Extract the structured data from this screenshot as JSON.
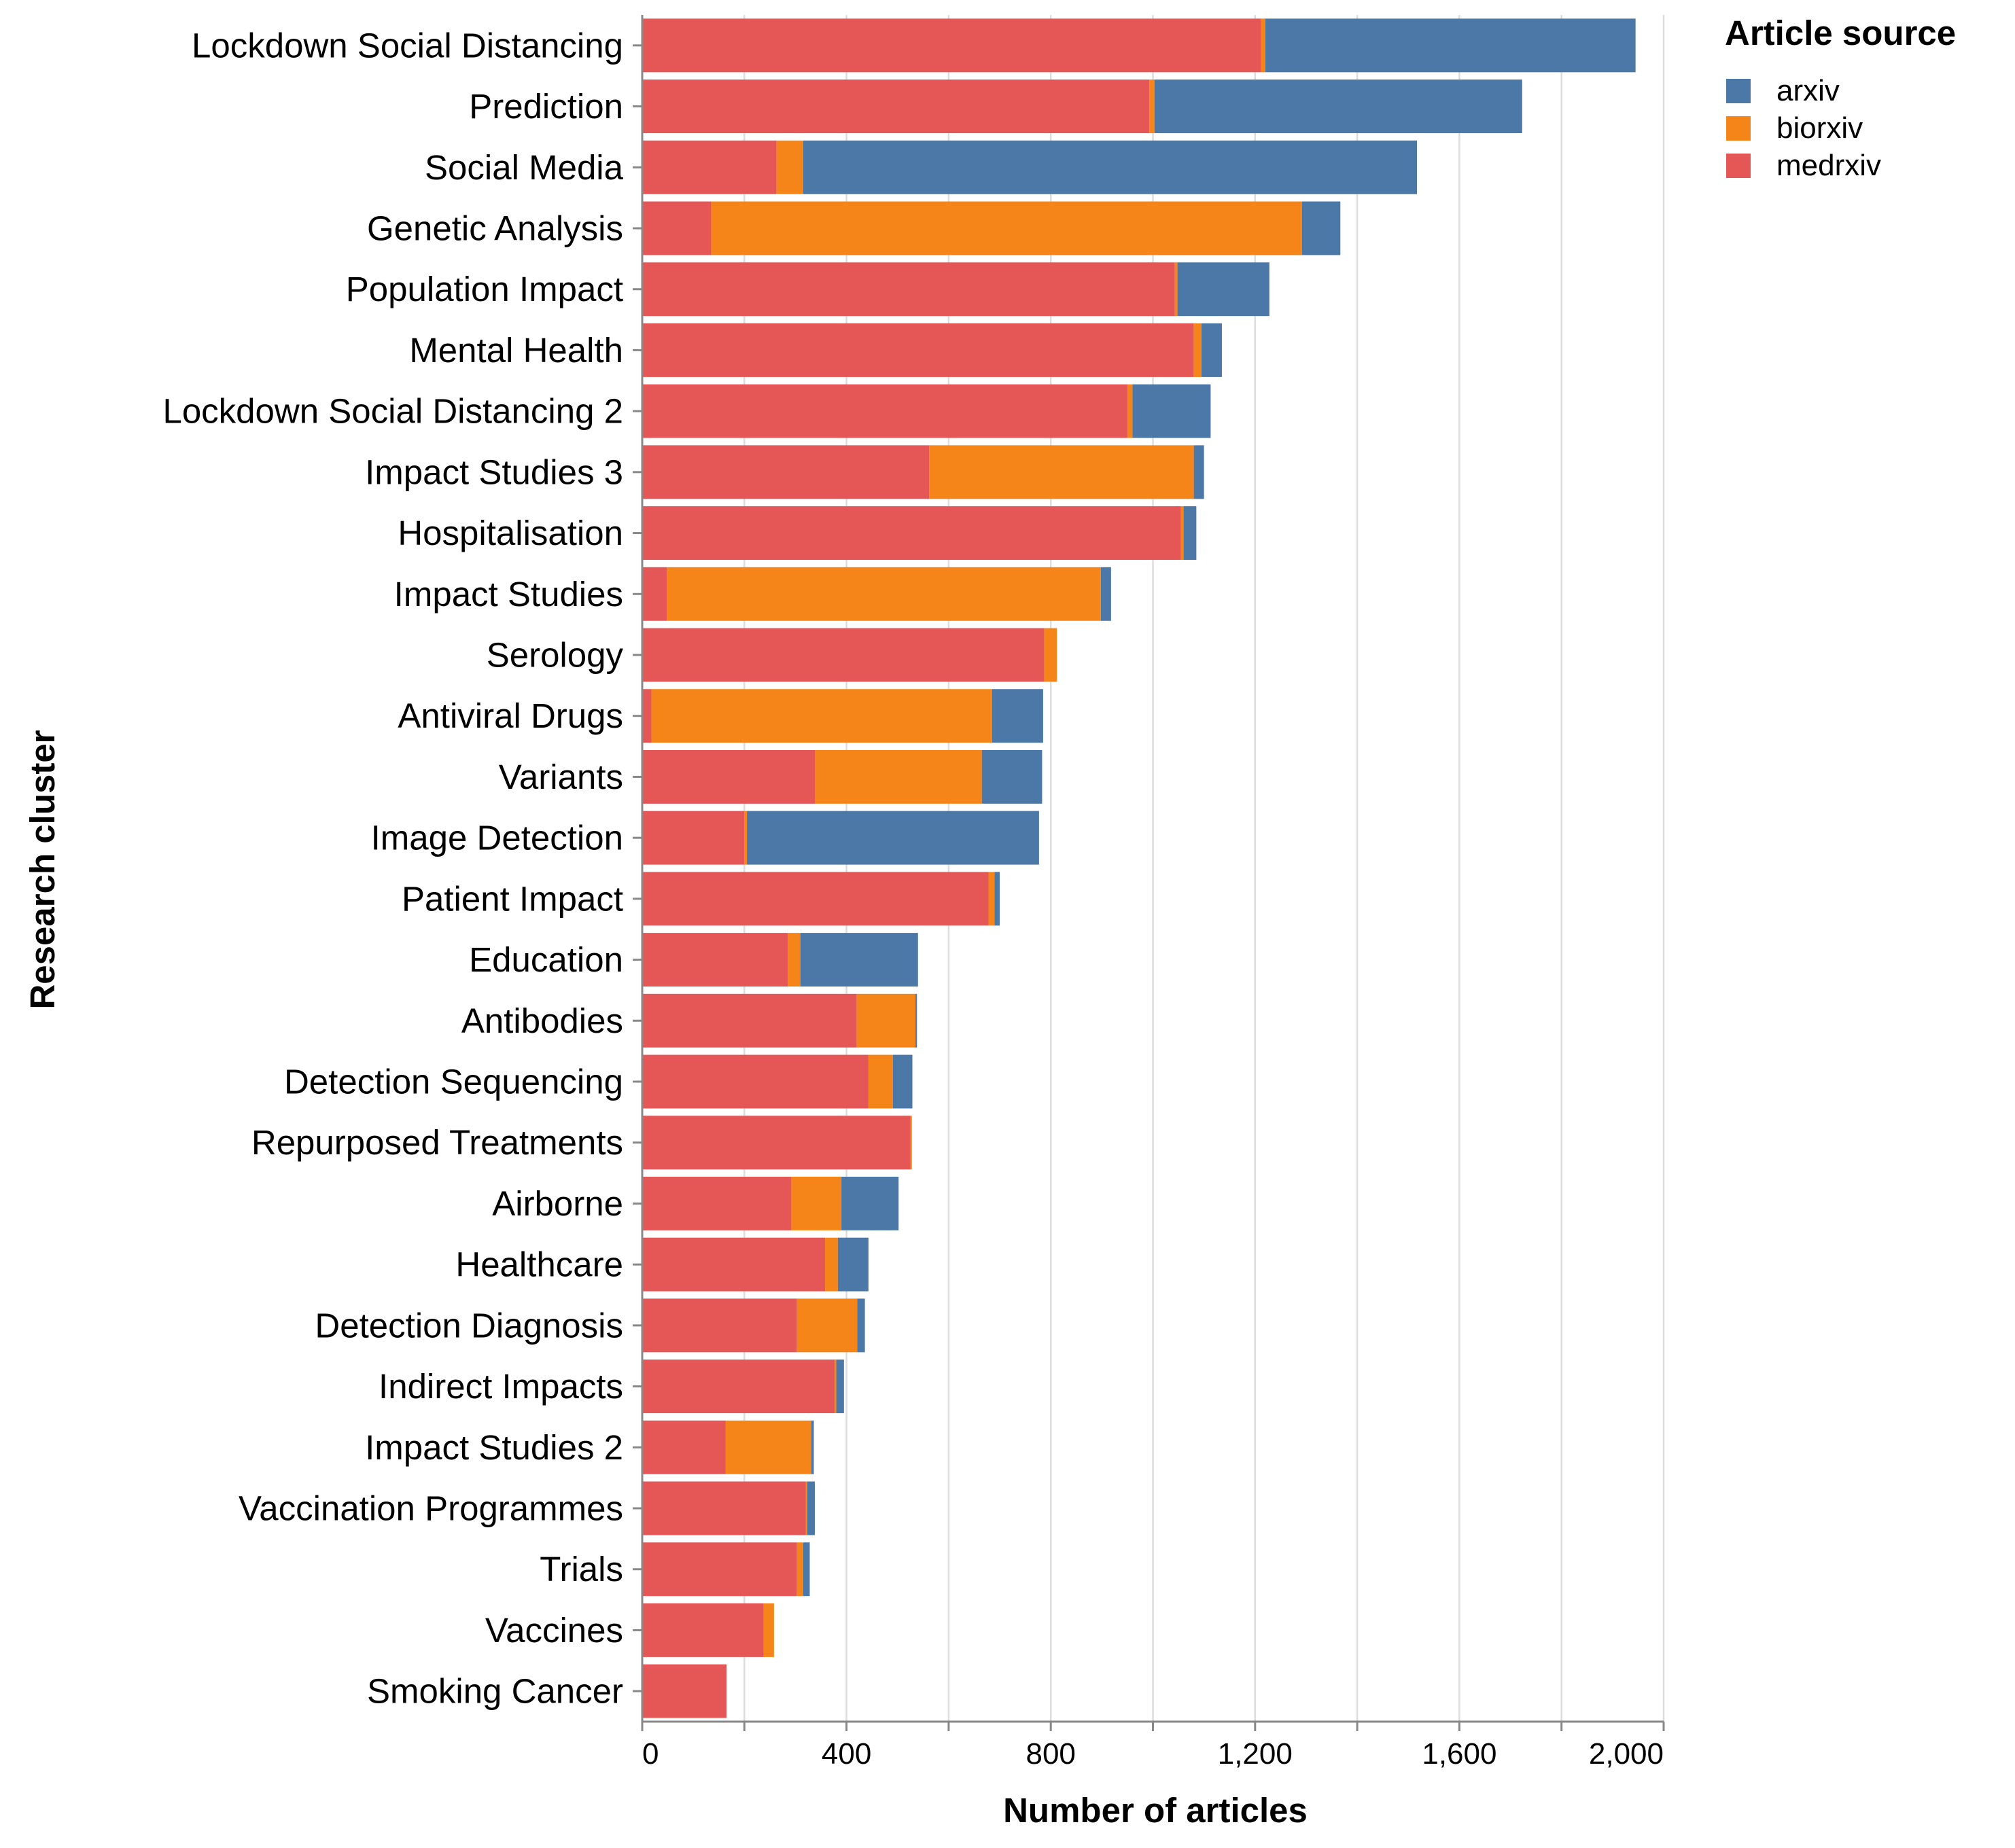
{
  "chart_data": {
    "type": "bar",
    "orientation": "horizontal",
    "stacked": true,
    "xlabel": "Number of articles",
    "ylabel": "Research cluster",
    "xlim": [
      0,
      2000
    ],
    "xticks": [
      "0",
      "400",
      "800",
      "1,200",
      "1,600",
      "2,000"
    ],
    "grid": true,
    "legend": {
      "title": "Article source",
      "position": "top-right",
      "entries": [
        "arxiv",
        "biorxiv",
        "medrxiv"
      ]
    },
    "colors": {
      "arxiv": "#4c78a8",
      "biorxiv": "#f58518",
      "medrxiv": "#e45756"
    },
    "categories": [
      "Lockdown Social Distancing",
      "Prediction",
      "Social Media",
      "Genetic Analysis",
      "Population Impact",
      "Mental Health",
      "Lockdown Social Distancing 2",
      "Impact Studies 3",
      "Hospitalisation",
      "Impact Studies",
      "Serology",
      "Antiviral Drugs",
      "Variants",
      "Image Detection",
      "Patient Impact",
      "Education",
      "Antibodies",
      "Detection Sequencing",
      "Repurposed Treatments",
      "Airborne",
      "Healthcare",
      "Detection Diagnosis",
      "Indirect Impacts",
      "Impact Studies 2",
      "Vaccination Programmes",
      "Trials",
      "Vaccines",
      "Smoking Cancer"
    ],
    "series": [
      {
        "name": "medrxiv",
        "values": [
          1212,
          993,
          263,
          135,
          1043,
          1080,
          950,
          562,
          1055,
          48,
          787,
          18,
          338,
          200,
          678,
          285,
          420,
          443,
          525,
          292,
          358,
          303,
          377,
          163,
          320,
          303,
          238,
          165
        ]
      },
      {
        "name": "biorxiv",
        "values": [
          8,
          10,
          52,
          1157,
          5,
          15,
          10,
          518,
          5,
          850,
          25,
          667,
          327,
          5,
          12,
          25,
          115,
          48,
          3,
          98,
          25,
          118,
          3,
          168,
          3,
          12,
          20,
          0
        ]
      },
      {
        "name": "arxiv",
        "values": [
          725,
          720,
          1202,
          75,
          180,
          40,
          153,
          20,
          25,
          20,
          0,
          100,
          118,
          572,
          10,
          230,
          3,
          38,
          0,
          112,
          60,
          15,
          15,
          5,
          15,
          13,
          0,
          0
        ]
      }
    ]
  }
}
